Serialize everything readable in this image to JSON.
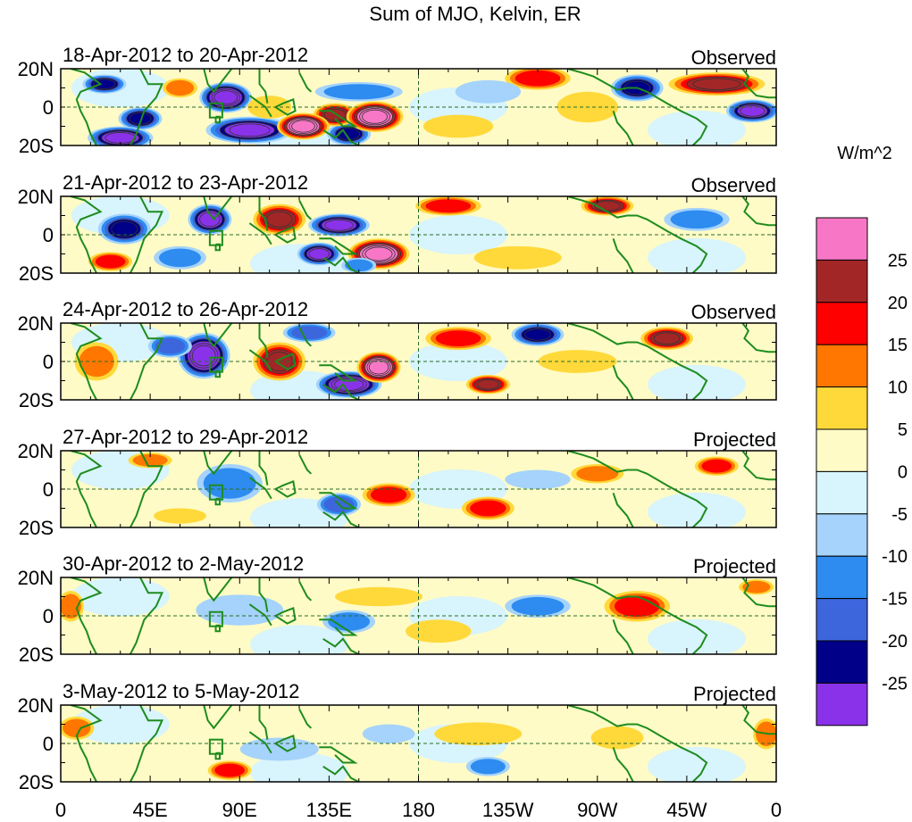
{
  "chart_data": {
    "type": "heatmap",
    "title": "Sum of MJO, Kelvin, ER",
    "units": "W/m^2",
    "x_ticks": [
      "0",
      "45E",
      "90E",
      "135E",
      "180",
      "135W",
      "90W",
      "45W",
      "0"
    ],
    "y_ticks": [
      "20N",
      "0",
      "20S"
    ],
    "colorbar": {
      "levels": [
        "25",
        "20",
        "15",
        "10",
        "5",
        "0",
        "-5",
        "-10",
        "-15",
        "-20",
        "-25"
      ],
      "colors": [
        "#f777c6",
        "#a32626",
        "#ff0000",
        "#ff7700",
        "#ffd93a",
        "#fffbc6",
        "#d8f4fc",
        "#a5d3fb",
        "#2e8cf0",
        "#3d66dd",
        "#000089",
        "#8a32ea"
      ]
    },
    "panels": [
      {
        "label": "18-Apr-2012 to 20-Apr-2012",
        "status": "Observed",
        "features": [
          {
            "lon": 83,
            "lat": 5,
            "value": -30,
            "rlon": 12,
            "rlat": 8
          },
          {
            "lon": 22,
            "lat": 12,
            "value": -22,
            "rlon": 10,
            "rlat": 5
          },
          {
            "lon": 40,
            "lat": -6,
            "value": -22,
            "rlon": 10,
            "rlat": 6
          },
          {
            "lon": 30,
            "lat": -16,
            "value": -25,
            "rlon": 15,
            "rlat": 6
          },
          {
            "lon": 95,
            "lat": -12,
            "value": -28,
            "rlon": 20,
            "rlat": 7
          },
          {
            "lon": 145,
            "lat": -14,
            "value": -22,
            "rlon": 10,
            "rlat": 6
          },
          {
            "lon": 138,
            "lat": -4,
            "value": 22,
            "rlon": 10,
            "rlat": 6
          },
          {
            "lon": 158,
            "lat": -5,
            "value": 30,
            "rlon": 13,
            "rlat": 8
          },
          {
            "lon": 122,
            "lat": -10,
            "value": 30,
            "rlon": 12,
            "rlat": 7
          },
          {
            "lon": 150,
            "lat": 8,
            "value": -12,
            "rlon": 20,
            "rlat": 5
          },
          {
            "lon": 60,
            "lat": 10,
            "value": 14,
            "rlon": 8,
            "rlat": 5
          },
          {
            "lon": 105,
            "lat": 0,
            "value": 8,
            "rlon": 10,
            "rlat": 6
          },
          {
            "lon": 240,
            "lat": 15,
            "value": 18,
            "rlon": 15,
            "rlat": 6
          },
          {
            "lon": 265,
            "lat": 0,
            "value": 8,
            "rlon": 14,
            "rlat": 8
          },
          {
            "lon": 290,
            "lat": 10,
            "value": -24,
            "rlon": 12,
            "rlat": 7
          },
          {
            "lon": 330,
            "lat": 12,
            "value": 20,
            "rlon": 22,
            "rlat": 6
          },
          {
            "lon": 348,
            "lat": -2,
            "value": -25,
            "rlon": 12,
            "rlat": 6
          },
          {
            "lon": 200,
            "lat": -10,
            "value": 8,
            "rlon": 16,
            "rlat": 6
          },
          {
            "lon": 215,
            "lat": 8,
            "value": -8,
            "rlon": 15,
            "rlat": 6
          }
        ]
      },
      {
        "label": "21-Apr-2012 to 23-Apr-2012",
        "status": "Observed",
        "features": [
          {
            "lon": 32,
            "lat": 3,
            "value": -22,
            "rlon": 12,
            "rlat": 8
          },
          {
            "lon": 75,
            "lat": 8,
            "value": -28,
            "rlon": 10,
            "rlat": 8
          },
          {
            "lon": 110,
            "lat": 8,
            "value": 22,
            "rlon": 12,
            "rlat": 8
          },
          {
            "lon": 140,
            "lat": 5,
            "value": -28,
            "rlon": 14,
            "rlat": 6
          },
          {
            "lon": 130,
            "lat": -10,
            "value": -25,
            "rlon": 10,
            "rlat": 6
          },
          {
            "lon": 160,
            "lat": -10,
            "value": 32,
            "rlon": 14,
            "rlat": 8
          },
          {
            "lon": 150,
            "lat": -16,
            "value": -14,
            "rlon": 8,
            "rlat": 4
          },
          {
            "lon": 25,
            "lat": -14,
            "value": 18,
            "rlon": 10,
            "rlat": 5
          },
          {
            "lon": 60,
            "lat": -12,
            "value": -14,
            "rlon": 12,
            "rlat": 6
          },
          {
            "lon": 195,
            "lat": 15,
            "value": 18,
            "rlon": 15,
            "rlat": 5
          },
          {
            "lon": 275,
            "lat": 15,
            "value": 20,
            "rlon": 12,
            "rlat": 5
          },
          {
            "lon": 320,
            "lat": 8,
            "value": -10,
            "rlon": 15,
            "rlat": 6
          },
          {
            "lon": 230,
            "lat": -12,
            "value": 6,
            "rlon": 20,
            "rlat": 6
          }
        ]
      },
      {
        "label": "24-Apr-2012 to 26-Apr-2012",
        "status": "Observed",
        "features": [
          {
            "lon": 72,
            "lat": 3,
            "value": -30,
            "rlon": 12,
            "rlat": 12
          },
          {
            "lon": 55,
            "lat": 8,
            "value": -15,
            "rlon": 10,
            "rlat": 6
          },
          {
            "lon": 110,
            "lat": 0,
            "value": 20,
            "rlon": 12,
            "rlat": 10
          },
          {
            "lon": 145,
            "lat": -12,
            "value": -30,
            "rlon": 15,
            "rlat": 7
          },
          {
            "lon": 160,
            "lat": -3,
            "value": 30,
            "rlon": 10,
            "rlat": 8
          },
          {
            "lon": 200,
            "lat": 12,
            "value": 18,
            "rlon": 15,
            "rlat": 6
          },
          {
            "lon": 240,
            "lat": 14,
            "value": -24,
            "rlon": 12,
            "rlat": 6
          },
          {
            "lon": 215,
            "lat": -12,
            "value": 22,
            "rlon": 10,
            "rlat": 5
          },
          {
            "lon": 305,
            "lat": 12,
            "value": 22,
            "rlon": 12,
            "rlat": 6
          },
          {
            "lon": 18,
            "lat": 0,
            "value": 12,
            "rlon": 10,
            "rlat": 10
          },
          {
            "lon": 125,
            "lat": 15,
            "value": -15,
            "rlon": 12,
            "rlat": 5
          },
          {
            "lon": 260,
            "lat": 0,
            "value": 8,
            "rlon": 18,
            "rlat": 6
          }
        ]
      },
      {
        "label": "27-Apr-2012 to 29-Apr-2012",
        "status": "Projected",
        "features": [
          {
            "lon": 85,
            "lat": 3,
            "value": -12,
            "rlon": 15,
            "rlat": 10
          },
          {
            "lon": 140,
            "lat": -8,
            "value": -18,
            "rlon": 10,
            "rlat": 6
          },
          {
            "lon": 165,
            "lat": -3,
            "value": 18,
            "rlon": 12,
            "rlat": 6
          },
          {
            "lon": 215,
            "lat": -10,
            "value": 18,
            "rlon": 12,
            "rlat": 6
          },
          {
            "lon": 330,
            "lat": 12,
            "value": 16,
            "rlon": 10,
            "rlat": 5
          },
          {
            "lon": 270,
            "lat": 8,
            "value": 10,
            "rlon": 12,
            "rlat": 5
          },
          {
            "lon": 45,
            "lat": 15,
            "value": 10,
            "rlon": 10,
            "rlat": 4
          },
          {
            "lon": 240,
            "lat": 5,
            "value": -8,
            "rlon": 15,
            "rlat": 5
          },
          {
            "lon": 60,
            "lat": -14,
            "value": 8,
            "rlon": 12,
            "rlat": 4
          }
        ]
      },
      {
        "label": "30-Apr-2012 to 2-May-2012",
        "status": "Projected",
        "features": [
          {
            "lon": 290,
            "lat": 5,
            "value": 18,
            "rlon": 15,
            "rlat": 8
          },
          {
            "lon": 90,
            "lat": 3,
            "value": -8,
            "rlon": 20,
            "rlat": 8
          },
          {
            "lon": 145,
            "lat": -3,
            "value": -12,
            "rlon": 12,
            "rlat": 6
          },
          {
            "lon": 190,
            "lat": -8,
            "value": 8,
            "rlon": 15,
            "rlat": 6
          },
          {
            "lon": 240,
            "lat": 5,
            "value": -10,
            "rlon": 15,
            "rlat": 6
          },
          {
            "lon": 350,
            "lat": 15,
            "value": 12,
            "rlon": 8,
            "rlat": 4
          },
          {
            "lon": 5,
            "lat": 5,
            "value": 10,
            "rlon": 6,
            "rlat": 8
          },
          {
            "lon": 160,
            "lat": 10,
            "value": 6,
            "rlon": 20,
            "rlat": 5
          }
        ]
      },
      {
        "label": "3-May-2012 to 5-May-2012",
        "status": "Projected",
        "features": [
          {
            "lon": 85,
            "lat": -14,
            "value": 18,
            "rlon": 10,
            "rlat": 5
          },
          {
            "lon": 110,
            "lat": -3,
            "value": -8,
            "rlon": 18,
            "rlat": 6
          },
          {
            "lon": 215,
            "lat": -12,
            "value": -12,
            "rlon": 10,
            "rlat": 5
          },
          {
            "lon": 210,
            "lat": 5,
            "value": 8,
            "rlon": 20,
            "rlat": 6
          },
          {
            "lon": 280,
            "lat": 3,
            "value": 8,
            "rlon": 12,
            "rlat": 6
          },
          {
            "lon": 8,
            "lat": 8,
            "value": 10,
            "rlon": 8,
            "rlat": 6
          },
          {
            "lon": 355,
            "lat": 5,
            "value": 10,
            "rlon": 6,
            "rlat": 8
          },
          {
            "lon": 165,
            "lat": 5,
            "value": -6,
            "rlon": 12,
            "rlat": 5
          }
        ]
      }
    ]
  }
}
